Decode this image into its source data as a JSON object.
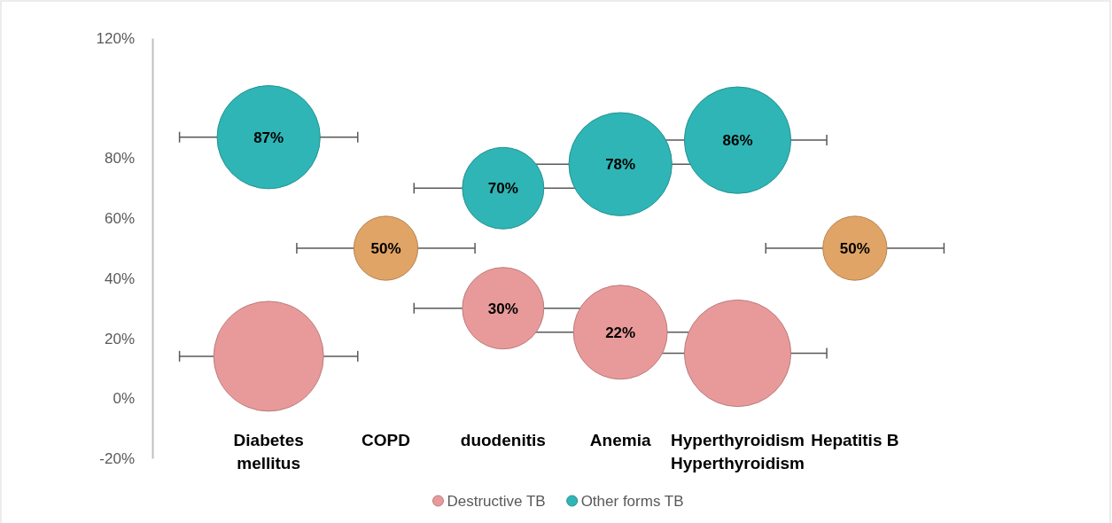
{
  "chart_data": {
    "type": "bubble",
    "categories": [
      "Diabetes mellitus",
      "COPD",
      "duodenitis",
      "Anemia",
      "Hyperthyroidism Hyperthyroidism",
      "Hepatitis B"
    ],
    "ylim": [
      -20,
      120
    ],
    "yticks": [
      {
        "value": -20,
        "label": "-20%"
      },
      {
        "value": 0,
        "label": "0%"
      },
      {
        "value": 20,
        "label": "20%"
      },
      {
        "value": 40,
        "label": "40%"
      },
      {
        "value": 60,
        "label": "60%"
      },
      {
        "value": 80,
        "label": "80%"
      },
      {
        "value": 120,
        "label": "120%"
      }
    ],
    "legend": "bottom",
    "series": [
      {
        "name": "Destructive TB",
        "color": "#e89a9a",
        "values": [
          14,
          null,
          30,
          22,
          15,
          null
        ],
        "sizes": [
          1,
          null,
          0.55,
          0.73,
          0.94,
          null
        ],
        "value_labels": [
          null,
          null,
          "30%",
          "22%",
          null,
          null
        ]
      },
      {
        "name": "Other forms TB",
        "color": "#2fb5b5",
        "values": [
          87,
          null,
          70,
          78,
          86,
          null
        ],
        "sizes": [
          0.88,
          null,
          0.55,
          0.88,
          0.94,
          null
        ],
        "value_labels": [
          "87%",
          null,
          "70%",
          "78%",
          "86%",
          null
        ]
      },
      {
        "color": "#e0a466",
        "values": [
          null,
          50,
          null,
          null,
          null,
          50
        ],
        "sizes": [
          null,
          0.34,
          null,
          null,
          null,
          0.34
        ],
        "value_labels": [
          null,
          "50%",
          null,
          null,
          null,
          "50%"
        ]
      }
    ]
  }
}
